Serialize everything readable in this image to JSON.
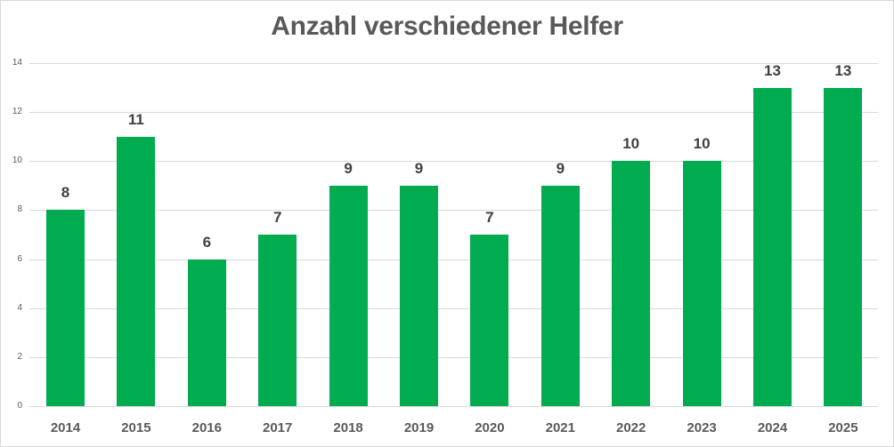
{
  "chart_data": {
    "type": "bar",
    "title": "Anzahl verschiedener Helfer",
    "xlabel": "",
    "ylabel": "",
    "categories": [
      "2014",
      "2015",
      "2016",
      "2017",
      "2018",
      "2019",
      "2020",
      "2021",
      "2022",
      "2023",
      "2024",
      "2025"
    ],
    "values": [
      8,
      11,
      6,
      7,
      9,
      9,
      7,
      9,
      10,
      10,
      13,
      13
    ],
    "ylim": [
      0,
      14
    ],
    "yticks": [
      0,
      2,
      4,
      6,
      8,
      10,
      12,
      14
    ],
    "grid": true,
    "legend": "none",
    "data_labels": true,
    "bar_color": "#00ac4f"
  },
  "colors": {
    "bar": "#00ac4f",
    "title": "#595959",
    "data_label": "#404040",
    "grid": "#d9d9d9"
  }
}
